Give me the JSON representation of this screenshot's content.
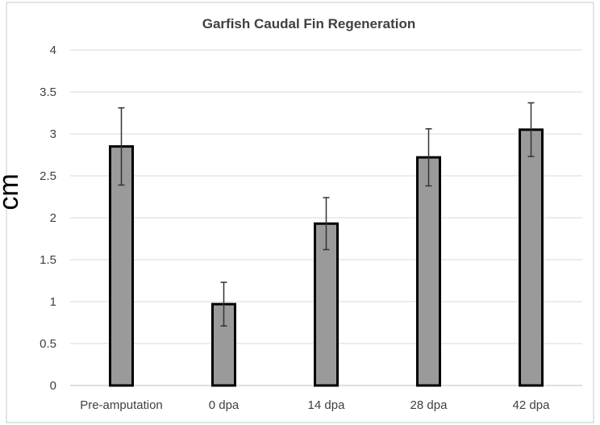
{
  "chart_data": {
    "type": "bar",
    "title": "Garfish Caudal Fin Regeneration",
    "xlabel": "",
    "ylabel": "cm",
    "categories": [
      "Pre-amputation",
      "0 dpa",
      "14 dpa",
      "28 dpa",
      "42 dpa"
    ],
    "values": [
      2.85,
      0.97,
      1.93,
      2.72,
      3.05
    ],
    "error_low": [
      2.39,
      0.71,
      1.62,
      2.38,
      2.73
    ],
    "error_high": [
      3.31,
      1.23,
      2.24,
      3.06,
      3.37
    ],
    "ylim": [
      0,
      4
    ],
    "yticks": [
      "0",
      "0.5",
      "1",
      "1.5",
      "2",
      "2.5",
      "3",
      "3.5",
      "4"
    ],
    "grid": true,
    "legend": "none",
    "colors": {
      "bar_fill": "#9a9a9a",
      "bar_stroke": "#000000",
      "grid": "#d9d9d9",
      "error_bar": "#333333"
    }
  }
}
